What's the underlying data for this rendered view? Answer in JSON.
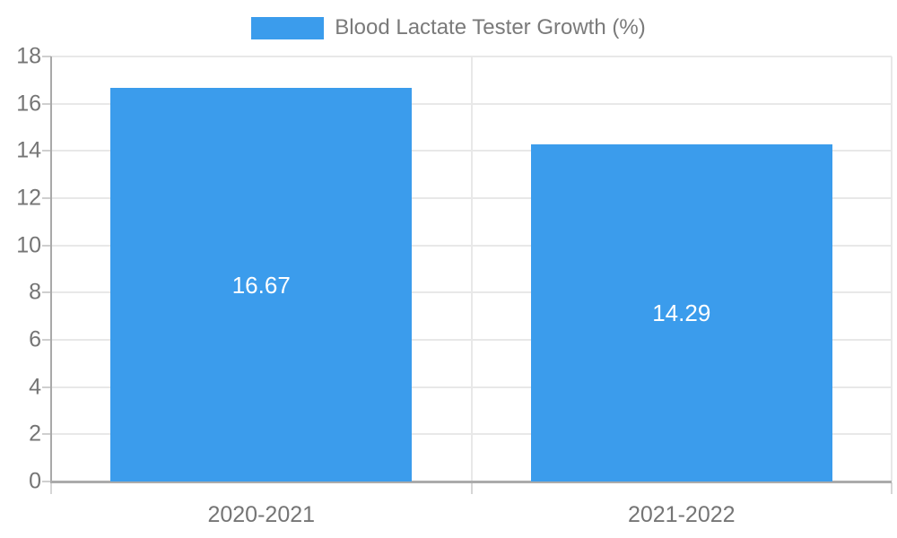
{
  "chart_data": {
    "type": "bar",
    "title": "Blood Lactate Tester Growth (%)",
    "categories": [
      "2020-2021",
      "2021-2022"
    ],
    "series": [
      {
        "name": "Blood Lactate Tester Growth (%)",
        "values": [
          16.67,
          14.29
        ]
      }
    ],
    "data_labels": [
      "16.67",
      "14.29"
    ],
    "xlabel": "",
    "ylabel": "",
    "ylim": [
      0,
      18
    ],
    "ytick_step": 2,
    "yticks": [
      0,
      2,
      4,
      6,
      8,
      10,
      12,
      14,
      16,
      18
    ],
    "grid": true,
    "legend_position": "top-center",
    "colors": {
      "bar": "#3b9cec",
      "bar_label_text": "#ffffff",
      "axis_text": "#757575",
      "legend_text": "#7a7a7a",
      "gridline": "#e8e8e8",
      "axis_line": "#aaaaaa"
    }
  }
}
